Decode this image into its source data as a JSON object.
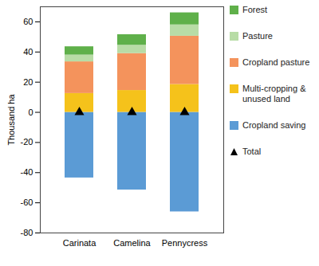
{
  "chart_data": {
    "type": "bar",
    "stacked": true,
    "y_label": "Thousand ha",
    "categories": [
      "Carinata",
      "Camelina",
      "Pennycress"
    ],
    "ylim": [
      -80,
      70
    ],
    "yticks": [
      -80,
      -60,
      -40,
      -20,
      0,
      20,
      40,
      60
    ],
    "legend": "right",
    "series": [
      {
        "name": "Cropland saving",
        "color": "#5b9bd5",
        "values": [
          -43.5,
          -51.5,
          -66
        ]
      },
      {
        "name": "Multi-cropping & unused land",
        "color": "#f5c21b",
        "values": [
          12.5,
          14.5,
          18.5
        ]
      },
      {
        "name": "Cropland pasture",
        "color": "#f4935c",
        "values": [
          21,
          24.5,
          32
        ]
      },
      {
        "name": "Pasture",
        "color": "#b8dca6",
        "values": [
          4.5,
          5.5,
          7.5
        ]
      },
      {
        "name": "Forest",
        "color": "#5fb04a",
        "values": [
          5.5,
          7,
          8
        ]
      },
      {
        "name": "Total",
        "type": "scatter",
        "marker": "triangle",
        "color": "#000000",
        "values": [
          0,
          0,
          0
        ]
      }
    ]
  }
}
